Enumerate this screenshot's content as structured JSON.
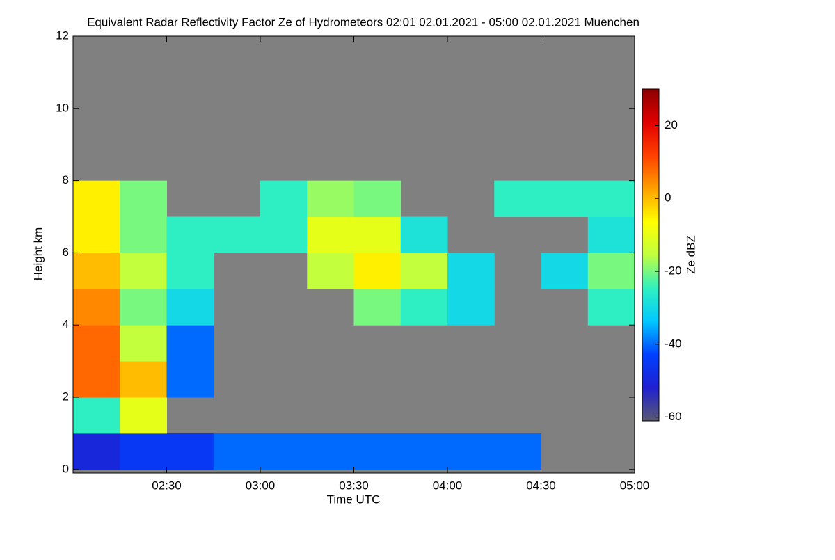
{
  "chart_data": {
    "type": "heatmap",
    "title": "Equivalent Radar Reflectivity Factor Ze of Hydrometeors   02:01 02.01.2021 - 05:00 02.01.2021 Muenchen",
    "xlabel": "Time UTC",
    "ylabel": "Height km",
    "colorbar_label": "Ze dBZ",
    "xlim": [
      120,
      300
    ],
    "xticks": [
      {
        "value": 150,
        "label": "02:30"
      },
      {
        "value": 180,
        "label": "03:00"
      },
      {
        "value": 210,
        "label": "03:30"
      },
      {
        "value": 240,
        "label": "04:00"
      },
      {
        "value": 270,
        "label": "04:30"
      },
      {
        "value": 300,
        "label": "05:00"
      }
    ],
    "ylim": [
      -0.1,
      12
    ],
    "yticks": [
      0,
      2,
      4,
      6,
      8,
      10,
      12
    ],
    "zlim": [
      -61,
      30
    ],
    "zticks": [
      -60,
      -40,
      -20,
      0,
      20
    ],
    "background": "#808080",
    "colormap": [
      "#5a5a72",
      "#2020d0",
      "#0040ff",
      "#00c8ff",
      "#30f0c0",
      "#c0ff40",
      "#ffff00",
      "#ffa000",
      "#ff4000",
      "#e00000",
      "#8b0000"
    ],
    "x": [
      127.5,
      142.5,
      157.5,
      172.5,
      187.5,
      202.5,
      217.5,
      232.5,
      247.5,
      262.5,
      277.5,
      292.5
    ],
    "y": [
      0.5,
      1.5,
      2.5,
      3.5,
      4.5,
      5.5,
      6.5,
      7.5,
      8.5,
      9.5,
      10.5,
      11.5
    ],
    "z": [
      [
        -50,
        -45,
        -45,
        -40,
        -40,
        -40,
        -40,
        -40,
        -40,
        -40,
        null,
        null
      ],
      [
        -25,
        -10,
        null,
        null,
        null,
        null,
        null,
        null,
        null,
        null,
        null,
        null
      ],
      [
        8,
        0,
        -40,
        null,
        null,
        null,
        null,
        null,
        null,
        null,
        null,
        null
      ],
      [
        8,
        -15,
        -40,
        null,
        null,
        null,
        null,
        null,
        null,
        null,
        null,
        null
      ],
      [
        5,
        -20,
        -30,
        null,
        null,
        null,
        -20,
        -25,
        -30,
        null,
        null,
        -25
      ],
      [
        0,
        -15,
        -25,
        null,
        null,
        -15,
        -5,
        -15,
        -30,
        null,
        -30,
        -20
      ],
      [
        -5,
        -20,
        -25,
        -25,
        -25,
        -10,
        -10,
        -28,
        null,
        null,
        null,
        -28
      ],
      [
        -5,
        -20,
        null,
        null,
        -25,
        -18,
        -20,
        null,
        null,
        -25,
        -25,
        -25
      ],
      [
        null,
        null,
        null,
        null,
        null,
        null,
        null,
        null,
        null,
        null,
        null,
        null
      ],
      [
        null,
        null,
        null,
        null,
        null,
        null,
        null,
        null,
        null,
        null,
        null,
        null
      ],
      [
        null,
        null,
        null,
        null,
        null,
        null,
        null,
        null,
        null,
        null,
        null,
        null
      ],
      [
        null,
        null,
        null,
        null,
        null,
        null,
        null,
        null,
        null,
        null,
        null,
        null
      ]
    ]
  }
}
